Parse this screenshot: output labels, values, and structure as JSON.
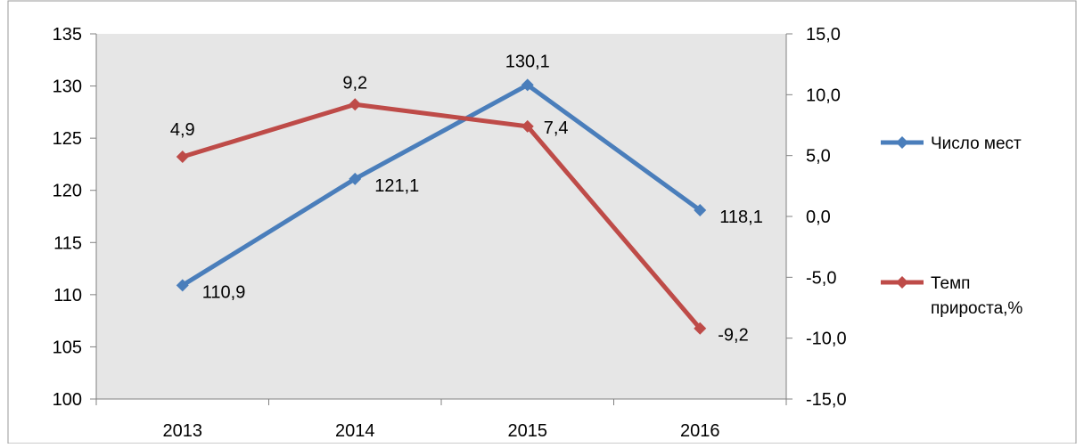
{
  "chart_data": {
    "type": "line",
    "x": [
      "2013",
      "2014",
      "2015",
      "2016"
    ],
    "series": [
      {
        "name": "Число мест",
        "axis": "left",
        "color": "#4a7ebb",
        "values": [
          110.9,
          121.1,
          130.1,
          118.1
        ],
        "labels": [
          "110,9",
          "121,1",
          "130,1",
          "118,1"
        ]
      },
      {
        "name": "Темп прироста,%",
        "axis": "right",
        "color": "#be4b48",
        "values": [
          4.9,
          9.2,
          7.4,
          -9.2
        ],
        "labels": [
          "4,9",
          "9,2",
          "7,4",
          "-9,2"
        ]
      }
    ],
    "y_left": {
      "lim": [
        100,
        135
      ],
      "ticks": [
        100,
        105,
        110,
        115,
        120,
        125,
        130,
        135
      ],
      "tick_labels": [
        "100",
        "105",
        "110",
        "115",
        "120",
        "125",
        "130",
        "135"
      ]
    },
    "y_right": {
      "lim": [
        -15,
        15
      ],
      "ticks": [
        -15,
        -10,
        -5,
        0,
        5,
        10,
        15
      ],
      "tick_labels": [
        "-15,0",
        "-10,0",
        "-5,0",
        "0,0",
        "5,0",
        "10,0",
        "15,0"
      ]
    },
    "legend_position": "right",
    "grid": false,
    "plot_background": "#e6e6e6"
  }
}
